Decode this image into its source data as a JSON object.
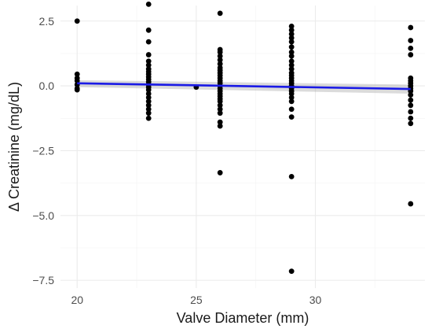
{
  "chart_data": {
    "type": "scatter",
    "title": "",
    "xlabel": "Valve Diameter (mm)",
    "ylabel": "Δ Creatinine (mg/dL)",
    "xlim": [
      19.3,
      34.6
    ],
    "ylim": [
      -7.8,
      3.1
    ],
    "x_ticks": [
      20,
      25,
      30
    ],
    "y_ticks": [
      2.5,
      0.0,
      -2.5,
      -5.0,
      -7.5
    ],
    "grid": true,
    "legend": "none",
    "points": [
      {
        "x": 20,
        "y": 2.5
      },
      {
        "x": 20,
        "y": 0.45
      },
      {
        "x": 20,
        "y": 0.3
      },
      {
        "x": 20,
        "y": 0.2
      },
      {
        "x": 20,
        "y": 0.05
      },
      {
        "x": 20,
        "y": -0.1
      },
      {
        "x": 20,
        "y": -0.15
      },
      {
        "x": 23,
        "y": 3.15
      },
      {
        "x": 23,
        "y": 2.15
      },
      {
        "x": 23,
        "y": 1.7
      },
      {
        "x": 23,
        "y": 1.2
      },
      {
        "x": 23,
        "y": 0.95
      },
      {
        "x": 23,
        "y": 0.8
      },
      {
        "x": 23,
        "y": 0.65
      },
      {
        "x": 23,
        "y": 0.55
      },
      {
        "x": 23,
        "y": 0.45
      },
      {
        "x": 23,
        "y": 0.35
      },
      {
        "x": 23,
        "y": 0.25
      },
      {
        "x": 23,
        "y": 0.15
      },
      {
        "x": 23,
        "y": 0.05
      },
      {
        "x": 23,
        "y": -0.05
      },
      {
        "x": 23,
        "y": -0.15
      },
      {
        "x": 23,
        "y": -0.3
      },
      {
        "x": 23,
        "y": -0.45
      },
      {
        "x": 23,
        "y": -0.6
      },
      {
        "x": 23,
        "y": -0.75
      },
      {
        "x": 23,
        "y": -0.9
      },
      {
        "x": 23,
        "y": -1.05
      },
      {
        "x": 23,
        "y": -1.25
      },
      {
        "x": 25,
        "y": -0.05
      },
      {
        "x": 26,
        "y": 2.8
      },
      {
        "x": 26,
        "y": 1.4
      },
      {
        "x": 26,
        "y": 1.3
      },
      {
        "x": 26,
        "y": 1.15
      },
      {
        "x": 26,
        "y": 1.0
      },
      {
        "x": 26,
        "y": 0.85
      },
      {
        "x": 26,
        "y": 0.7
      },
      {
        "x": 26,
        "y": 0.6
      },
      {
        "x": 26,
        "y": 0.5
      },
      {
        "x": 26,
        "y": 0.4
      },
      {
        "x": 26,
        "y": 0.3
      },
      {
        "x": 26,
        "y": 0.2
      },
      {
        "x": 26,
        "y": 0.1
      },
      {
        "x": 26,
        "y": 0.0
      },
      {
        "x": 26,
        "y": -0.1
      },
      {
        "x": 26,
        "y": -0.2
      },
      {
        "x": 26,
        "y": -0.3
      },
      {
        "x": 26,
        "y": -0.4
      },
      {
        "x": 26,
        "y": -0.5
      },
      {
        "x": 26,
        "y": -0.6
      },
      {
        "x": 26,
        "y": -0.75
      },
      {
        "x": 26,
        "y": -0.9
      },
      {
        "x": 26,
        "y": -1.05
      },
      {
        "x": 26,
        "y": -1.4
      },
      {
        "x": 26,
        "y": -1.55
      },
      {
        "x": 26,
        "y": -3.35
      },
      {
        "x": 29,
        "y": 2.3
      },
      {
        "x": 29,
        "y": 2.15
      },
      {
        "x": 29,
        "y": 2.0
      },
      {
        "x": 29,
        "y": 1.85
      },
      {
        "x": 29,
        "y": 1.7
      },
      {
        "x": 29,
        "y": 1.5
      },
      {
        "x": 29,
        "y": 1.3
      },
      {
        "x": 29,
        "y": 1.15
      },
      {
        "x": 29,
        "y": 0.95
      },
      {
        "x": 29,
        "y": 0.8
      },
      {
        "x": 29,
        "y": 0.65
      },
      {
        "x": 29,
        "y": 0.5
      },
      {
        "x": 29,
        "y": 0.4
      },
      {
        "x": 29,
        "y": 0.3
      },
      {
        "x": 29,
        "y": 0.2
      },
      {
        "x": 29,
        "y": 0.1
      },
      {
        "x": 29,
        "y": 0.0
      },
      {
        "x": 29,
        "y": -0.1
      },
      {
        "x": 29,
        "y": -0.2
      },
      {
        "x": 29,
        "y": -0.3
      },
      {
        "x": 29,
        "y": -0.45
      },
      {
        "x": 29,
        "y": -0.6
      },
      {
        "x": 29,
        "y": -0.9
      },
      {
        "x": 29,
        "y": -1.2
      },
      {
        "x": 29,
        "y": -3.5
      },
      {
        "x": 29,
        "y": -7.15
      },
      {
        "x": 34,
        "y": 2.25
      },
      {
        "x": 34,
        "y": 1.75
      },
      {
        "x": 34,
        "y": 1.45
      },
      {
        "x": 34,
        "y": 1.2
      },
      {
        "x": 34,
        "y": 0.3
      },
      {
        "x": 34,
        "y": 0.2
      },
      {
        "x": 34,
        "y": 0.1
      },
      {
        "x": 34,
        "y": 0.0
      },
      {
        "x": 34,
        "y": -0.1
      },
      {
        "x": 34,
        "y": -0.2
      },
      {
        "x": 34,
        "y": -0.35
      },
      {
        "x": 34,
        "y": -0.55
      },
      {
        "x": 34,
        "y": -0.75
      },
      {
        "x": 34,
        "y": -1.0
      },
      {
        "x": 34,
        "y": -1.25
      },
      {
        "x": 34,
        "y": -1.45
      },
      {
        "x": 34,
        "y": -4.55
      }
    ],
    "trend_line": {
      "x": [
        20,
        34
      ],
      "y": [
        0.1,
        -0.12
      ],
      "ci_lower": [
        -0.05,
        -0.3
      ],
      "ci_upper": [
        0.22,
        0.05
      ]
    },
    "colors": {
      "points": "#000000",
      "trend": "#1a1ae6",
      "band": "#999999",
      "grid": "#ebebeb"
    }
  }
}
